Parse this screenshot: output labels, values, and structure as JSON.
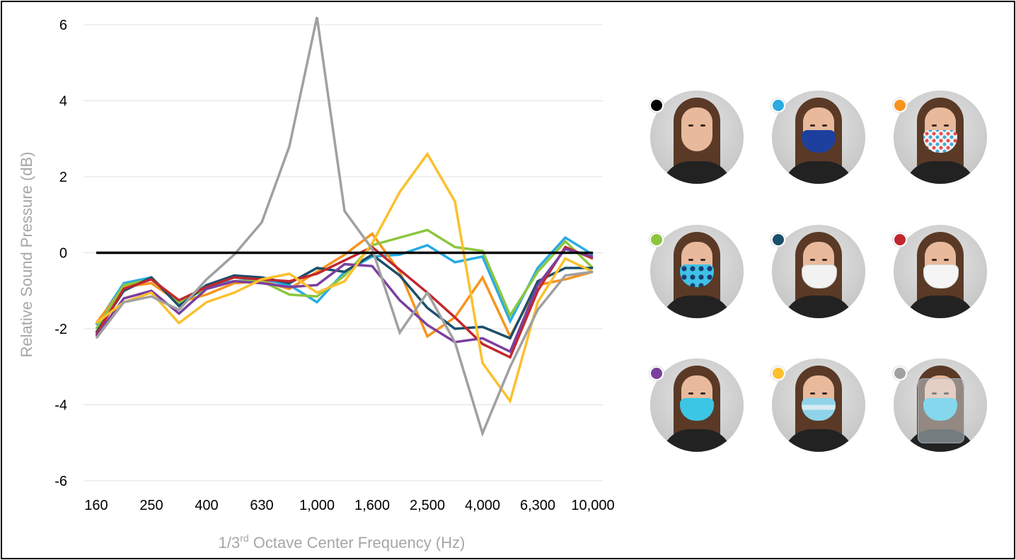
{
  "chart_data": {
    "type": "line",
    "xlabel": "1/3rd Octave Center Frequency (Hz)",
    "xlabel_parts": {
      "pre": "1/3",
      "sup": "rd",
      "post": " Octave Center Frequency (Hz)"
    },
    "ylabel": "Relative Sound Pressure (dB)",
    "ylim": [
      -6,
      6
    ],
    "yticks": [
      6,
      4,
      2,
      0,
      -2,
      -4,
      -6
    ],
    "grid": true,
    "x_frequencies": [
      160,
      200,
      250,
      315,
      400,
      500,
      630,
      800,
      1000,
      1250,
      1600,
      2000,
      2500,
      3150,
      4000,
      5000,
      6300,
      8000,
      10000
    ],
    "xtick_labels": [
      "160",
      "250",
      "400",
      "630",
      "1,000",
      "1,600",
      "2,500",
      "4,000",
      "6,300",
      "10,000"
    ],
    "xtick_indices": [
      0,
      2,
      4,
      6,
      8,
      10,
      12,
      14,
      16,
      18
    ],
    "series": [
      {
        "color": "#000000",
        "values": [
          0,
          0,
          0,
          0,
          0,
          0,
          0,
          0,
          0,
          0,
          0,
          0,
          0,
          0,
          0,
          0,
          0,
          0,
          0
        ]
      },
      {
        "color": "#29abe2",
        "values": [
          -1.9,
          -0.8,
          -0.65,
          -1.35,
          -0.85,
          -0.75,
          -0.7,
          -0.85,
          -1.3,
          -0.5,
          -0.1,
          -0.05,
          0.2,
          -0.25,
          -0.1,
          -1.8,
          -0.4,
          0.4,
          -0.05
        ]
      },
      {
        "color": "#f7941d",
        "values": [
          -1.85,
          -0.9,
          -0.8,
          -1.3,
          -1.1,
          -0.8,
          -0.75,
          -0.95,
          -0.5,
          -0.05,
          0.5,
          -0.5,
          -2.2,
          -1.7,
          -0.65,
          -2.2,
          -0.85,
          -0.7,
          -0.5
        ]
      },
      {
        "color": "#8cc63f",
        "values": [
          -2.0,
          -0.85,
          -0.7,
          -1.3,
          -0.95,
          -0.75,
          -0.75,
          -1.1,
          -1.15,
          -0.6,
          0.2,
          0.4,
          0.6,
          0.15,
          0.05,
          -1.65,
          -0.5,
          0.3,
          -0.4
        ]
      },
      {
        "color": "#1b4f6b",
        "values": [
          -2.1,
          -1.0,
          -0.65,
          -1.4,
          -0.85,
          -0.6,
          -0.65,
          -0.8,
          -0.4,
          -0.5,
          -0.05,
          -0.6,
          -1.45,
          -2.0,
          -1.95,
          -2.25,
          -0.75,
          -0.4,
          -0.4
        ]
      },
      {
        "color": "#c1272d",
        "values": [
          -2.15,
          -0.95,
          -0.7,
          -1.25,
          -0.9,
          -0.65,
          -0.7,
          -0.75,
          -0.55,
          -0.2,
          0.15,
          -0.45,
          -1.05,
          -1.7,
          -2.4,
          -2.75,
          -1.0,
          0.15,
          -0.15
        ]
      },
      {
        "color": "#7b3f9e",
        "values": [
          -2.2,
          -1.2,
          -1.0,
          -1.6,
          -0.95,
          -0.75,
          -0.8,
          -0.9,
          -0.85,
          -0.3,
          -0.35,
          -1.25,
          -1.9,
          -2.35,
          -2.25,
          -2.6,
          -0.85,
          0.1,
          -0.1
        ]
      },
      {
        "color": "#fbc02d",
        "values": [
          -1.85,
          -1.3,
          -1.05,
          -1.85,
          -1.3,
          -1.05,
          -0.7,
          -0.55,
          -1.05,
          -0.75,
          0.25,
          1.6,
          2.6,
          1.35,
          -2.9,
          -3.9,
          -1.3,
          -0.15,
          -0.5
        ]
      },
      {
        "color": "#a0a0a0",
        "values": [
          -2.25,
          -1.3,
          -1.15,
          -1.5,
          -0.7,
          -0.05,
          0.8,
          2.8,
          6.2,
          1.1,
          0.1,
          -2.1,
          -1.05,
          -2.35,
          -4.75,
          -3.0,
          -1.5,
          -0.6,
          -0.5
        ]
      }
    ]
  },
  "legend_photos": [
    {
      "color": "#000000",
      "mask": "none"
    },
    {
      "color": "#29abe2",
      "mask": "cloth-blue"
    },
    {
      "color": "#f7941d",
      "mask": "cloth-floral"
    },
    {
      "color": "#8cc63f",
      "mask": "cloth-pattern"
    },
    {
      "color": "#1b4f6b",
      "mask": "n95-white-valve"
    },
    {
      "color": "#c1272d",
      "mask": "n95-white"
    },
    {
      "color": "#7b3f9e",
      "mask": "surgical-blue"
    },
    {
      "color": "#fbc02d",
      "mask": "clear-window"
    },
    {
      "color": "#a0a0a0",
      "mask": "face-shield"
    }
  ]
}
